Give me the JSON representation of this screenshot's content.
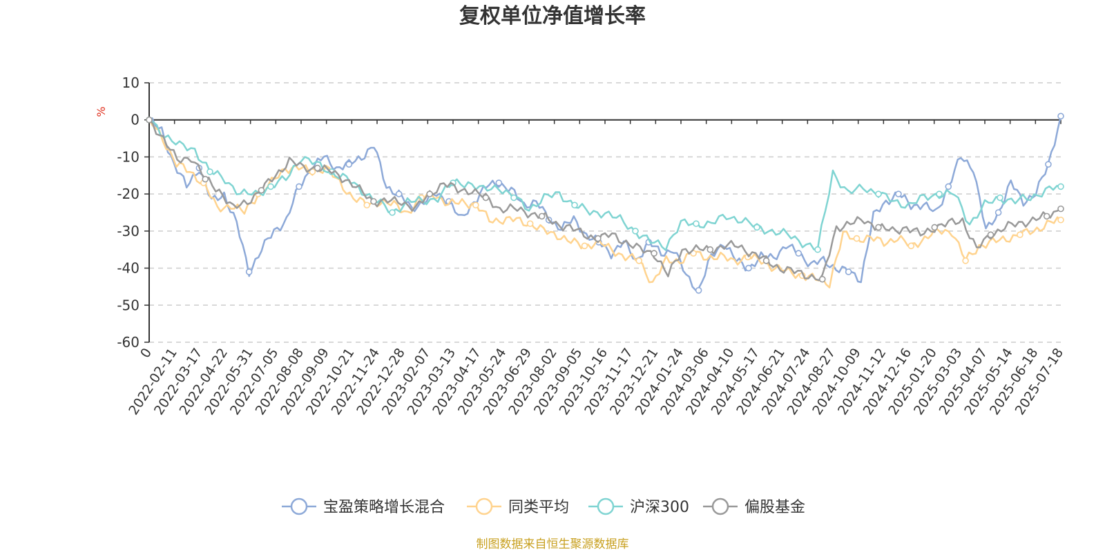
{
  "chart_data": {
    "type": "line",
    "title": "复权单位净值增长率",
    "y_unit": "%",
    "ylim": [
      -60,
      10
    ],
    "yticks": [
      10,
      0,
      -10,
      -20,
      -30,
      -40,
      -50,
      -60
    ],
    "grid": "horizontal-dashed",
    "legend_position": "bottom",
    "x_tick_labels": [
      "0",
      "2022-02-11",
      "2022-03-17",
      "2022-04-22",
      "2022-05-31",
      "2022-07-05",
      "2022-08-08",
      "2022-09-09",
      "2022-10-21",
      "2022-11-24",
      "2022-12-28",
      "2023-02-07",
      "2023-03-13",
      "2023-04-17",
      "2023-05-24",
      "2023-06-29",
      "2023-08-02",
      "2023-09-05",
      "2023-10-16",
      "2023-11-17",
      "2023-12-21",
      "2024-01-24",
      "2024-03-06",
      "2024-04-10",
      "2024-05-17",
      "2024-06-21",
      "2024-07-24",
      "2024-08-27",
      "2024-10-09",
      "2024-11-12",
      "2024-12-16",
      "2025-01-20",
      "2025-03-03",
      "2025-04-07",
      "2025-05-14",
      "2025-06-18",
      "2025-07-18"
    ],
    "series": [
      {
        "name": "宝盈策略增长混合",
        "color": "#8da9d8",
        "values": [
          0,
          -3,
          -12,
          -18,
          -13,
          -22,
          -20,
          -28,
          -41,
          -35,
          -30,
          -27,
          -18,
          -13,
          -10,
          -13,
          -12,
          -10,
          -7,
          -18,
          -20,
          -24,
          -22,
          -20,
          -22,
          -27,
          -22,
          -18,
          -17,
          -19,
          -23,
          -22,
          -27,
          -29,
          -27,
          -31,
          -33,
          -36,
          -33,
          -38,
          -33,
          -36,
          -35,
          -42,
          -46,
          -37,
          -33,
          -38,
          -40,
          -37,
          -37,
          -34,
          -36,
          -39,
          -38,
          -40,
          -41,
          -43,
          -26,
          -22,
          -20,
          -23,
          -23,
          -25,
          -18,
          -10,
          -13,
          -30,
          -25,
          -17,
          -22,
          -20,
          -12,
          1
        ]
      },
      {
        "name": "同类平均",
        "color": "#ffd38e",
        "values": [
          0,
          -5,
          -12,
          -14,
          -17,
          -24,
          -23,
          -25,
          -20,
          -17,
          -13,
          -13,
          -14,
          -13,
          -17,
          -21,
          -23,
          -22,
          -23,
          -25,
          -21,
          -20,
          -23,
          -22,
          -23,
          -27,
          -27,
          -27,
          -28,
          -30,
          -31,
          -33,
          -34,
          -33,
          -35,
          -37,
          -38,
          -44,
          -38,
          -38,
          -36,
          -37,
          -37,
          -38,
          -37,
          -38,
          -40,
          -41,
          -42,
          -43,
          -44,
          -31,
          -32,
          -32,
          -33,
          -32,
          -34,
          -32,
          -30,
          -30,
          -38,
          -34,
          -33,
          -32,
          -31,
          -30,
          -28,
          -27
        ]
      },
      {
        "name": "沪深300",
        "color": "#7fd4d2",
        "values": [
          0,
          -4,
          -7,
          -8,
          -14,
          -16,
          -20,
          -20,
          -18,
          -16,
          -10,
          -12,
          -14,
          -16,
          -19,
          -22,
          -25,
          -22,
          -22,
          -21,
          -17,
          -17,
          -19,
          -18,
          -21,
          -24,
          -21,
          -20,
          -23,
          -25,
          -25,
          -27,
          -30,
          -33,
          -34,
          -28,
          -28,
          -28,
          -26,
          -27,
          -29,
          -30,
          -31,
          -33,
          -35,
          -14,
          -20,
          -18,
          -20,
          -22,
          -23,
          -21,
          -20,
          -20,
          -28,
          -23,
          -21,
          -22,
          -21,
          -19,
          -18
        ]
      },
      {
        "name": "偏股基金",
        "color": "#999999",
        "values": [
          0,
          -5,
          -11,
          -10,
          -16,
          -19,
          -24,
          -22,
          -19,
          -15,
          -11,
          -13,
          -13,
          -14,
          -16,
          -19,
          -22,
          -22,
          -22,
          -24,
          -20,
          -17,
          -19,
          -19,
          -21,
          -24,
          -24,
          -25,
          -26,
          -28,
          -29,
          -31,
          -32,
          -31,
          -33,
          -35,
          -36,
          -42,
          -35,
          -35,
          -35,
          -34,
          -34,
          -36,
          -38,
          -40,
          -41,
          -42,
          -43,
          -29,
          -28,
          -27,
          -29,
          -30,
          -29,
          -31,
          -29,
          -28,
          -27,
          -35,
          -31,
          -29,
          -28,
          -27,
          -26,
          -24
        ]
      }
    ]
  },
  "footer": {
    "source": "制图数据来自恒生聚源数据库"
  }
}
